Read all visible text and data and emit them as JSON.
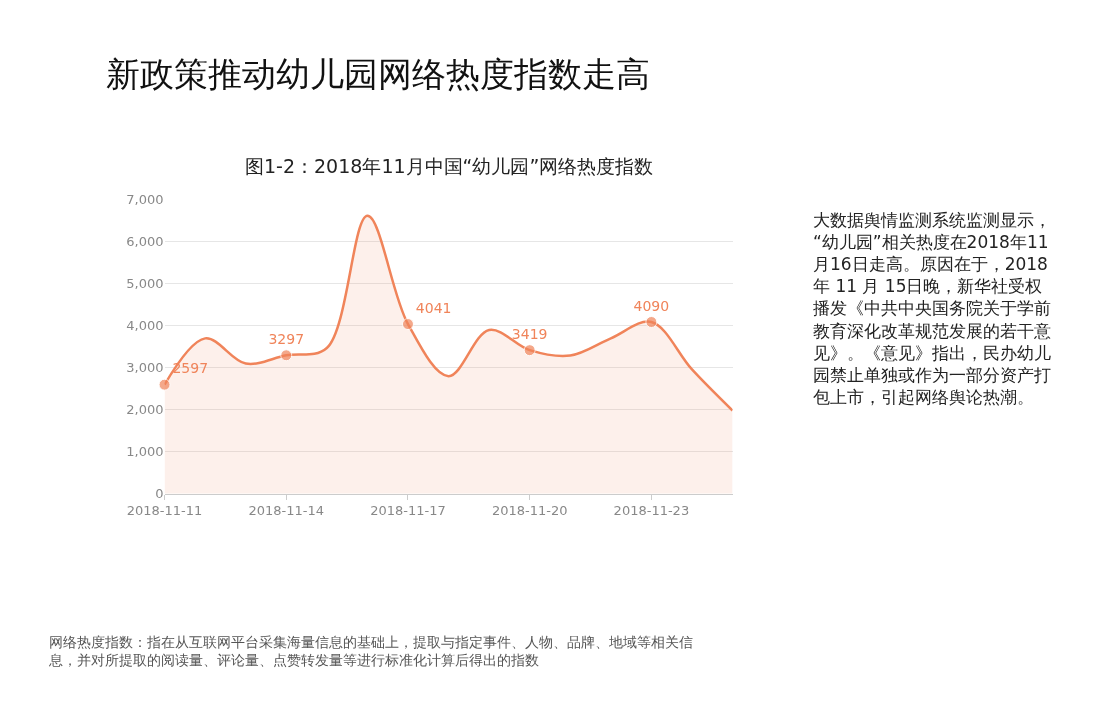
{
  "chart_data": {
    "type": "area",
    "title": "新政策推动幼儿园网络热度指数走高",
    "subtitle": "图1-2：2018年11月中国“幼儿园”网络热度指数",
    "x": [
      "2018-11-11",
      "2018-11-12",
      "2018-11-13",
      "2018-11-14",
      "2018-11-15",
      "2018-11-16",
      "2018-11-17",
      "2018-11-18",
      "2018-11-19",
      "2018-11-20",
      "2018-11-21",
      "2018-11-22",
      "2018-11-23",
      "2018-11-24",
      "2018-11-25"
    ],
    "series": [
      {
        "color": "#f0845a",
        "values": [
          2597,
          3700,
          3100,
          3297,
          3470,
          6620,
          4041,
          2800,
          3900,
          3419,
          3290,
          3700,
          4090,
          2960,
          1980
        ],
        "value_labels": [
          "2597",
          null,
          null,
          "3297",
          null,
          null,
          "4041",
          null,
          null,
          "3419",
          null,
          null,
          "4090",
          null,
          null
        ]
      }
    ],
    "xlim": [
      "2018-11-11",
      "2018-11-25"
    ],
    "xticks": [
      {
        "value": "2018-11-11",
        "label": "2018-11-11"
      },
      {
        "value": "2018-11-14",
        "label": "2018-11-14"
      },
      {
        "value": "2018-11-17",
        "label": "2018-11-17"
      },
      {
        "value": "2018-11-20",
        "label": "2018-11-20"
      },
      {
        "value": "2018-11-23",
        "label": "2018-11-23"
      }
    ],
    "ylim": [
      0,
      7000
    ],
    "yticks": [
      {
        "value": 0,
        "label": "0"
      },
      {
        "value": 1000,
        "label": "1,000"
      },
      {
        "value": 2000,
        "label": "2,000"
      },
      {
        "value": 3000,
        "label": "3,000"
      },
      {
        "value": 4000,
        "label": "4,000"
      },
      {
        "value": 5000,
        "label": "5,000"
      },
      {
        "value": 6000,
        "label": "6,000"
      },
      {
        "value": 7000,
        "label": "7,000"
      }
    ],
    "grid": "y",
    "line_style": "solid",
    "legend": false,
    "annotations": [
      "大数据舆情监测系统监测显示，“幼儿园”相关热度在2018年11月16日走高。原因在于，2018 年 11 月 15日晚，新华社受权播发《中共中央国务院关于学前教育深化改革规范发展的若干意见》。《意见》指出，民办幼儿园禁止单独或作为一部分资产打包上市，引起网络舆论热潮。",
      "网络热度指数：指在从互联网平台采集海量信息的基础上，提取与指定事件、人物、品牌、地域等相关信息，并对所提取的阅读量、评论量、点赞转发量等进行标准化计算后得出的指数"
    ]
  }
}
